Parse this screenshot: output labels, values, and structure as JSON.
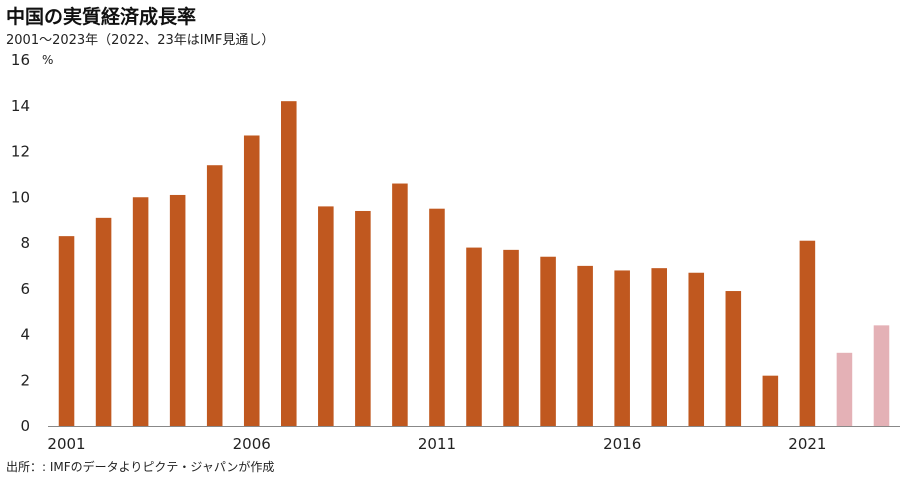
{
  "chart_data": {
    "type": "bar",
    "title": "中国の実質経済成長率",
    "subtitle": "2001～2023年（2022、23年はIMF見通し）",
    "source": "出所：: IMFのデータよりピクテ・ジャパンが作成",
    "y_unit": "%",
    "ylim": [
      0,
      16
    ],
    "y_ticks": [
      0,
      2,
      4,
      6,
      8,
      10,
      12,
      14,
      16
    ],
    "x_tick_labels": [
      "2001",
      "2006",
      "2011",
      "2016",
      "2021"
    ],
    "grid": false,
    "legend": "none",
    "categories": [
      "2001",
      "2002",
      "2003",
      "2004",
      "2005",
      "2006",
      "2007",
      "2008",
      "2009",
      "2010",
      "2011",
      "2012",
      "2013",
      "2014",
      "2015",
      "2016",
      "2017",
      "2018",
      "2019",
      "2020",
      "2021",
      "2022",
      "2023"
    ],
    "values": [
      8.3,
      9.1,
      10.0,
      10.1,
      11.4,
      12.7,
      14.2,
      9.6,
      9.4,
      10.6,
      9.5,
      7.8,
      7.7,
      7.4,
      7.0,
      6.8,
      6.9,
      6.7,
      5.9,
      2.2,
      8.1,
      3.2,
      4.4
    ],
    "colors": {
      "actual": "#c0581f",
      "forecast": "#e4b1b6",
      "axis": "#888888"
    },
    "forecast_from": "2022"
  }
}
